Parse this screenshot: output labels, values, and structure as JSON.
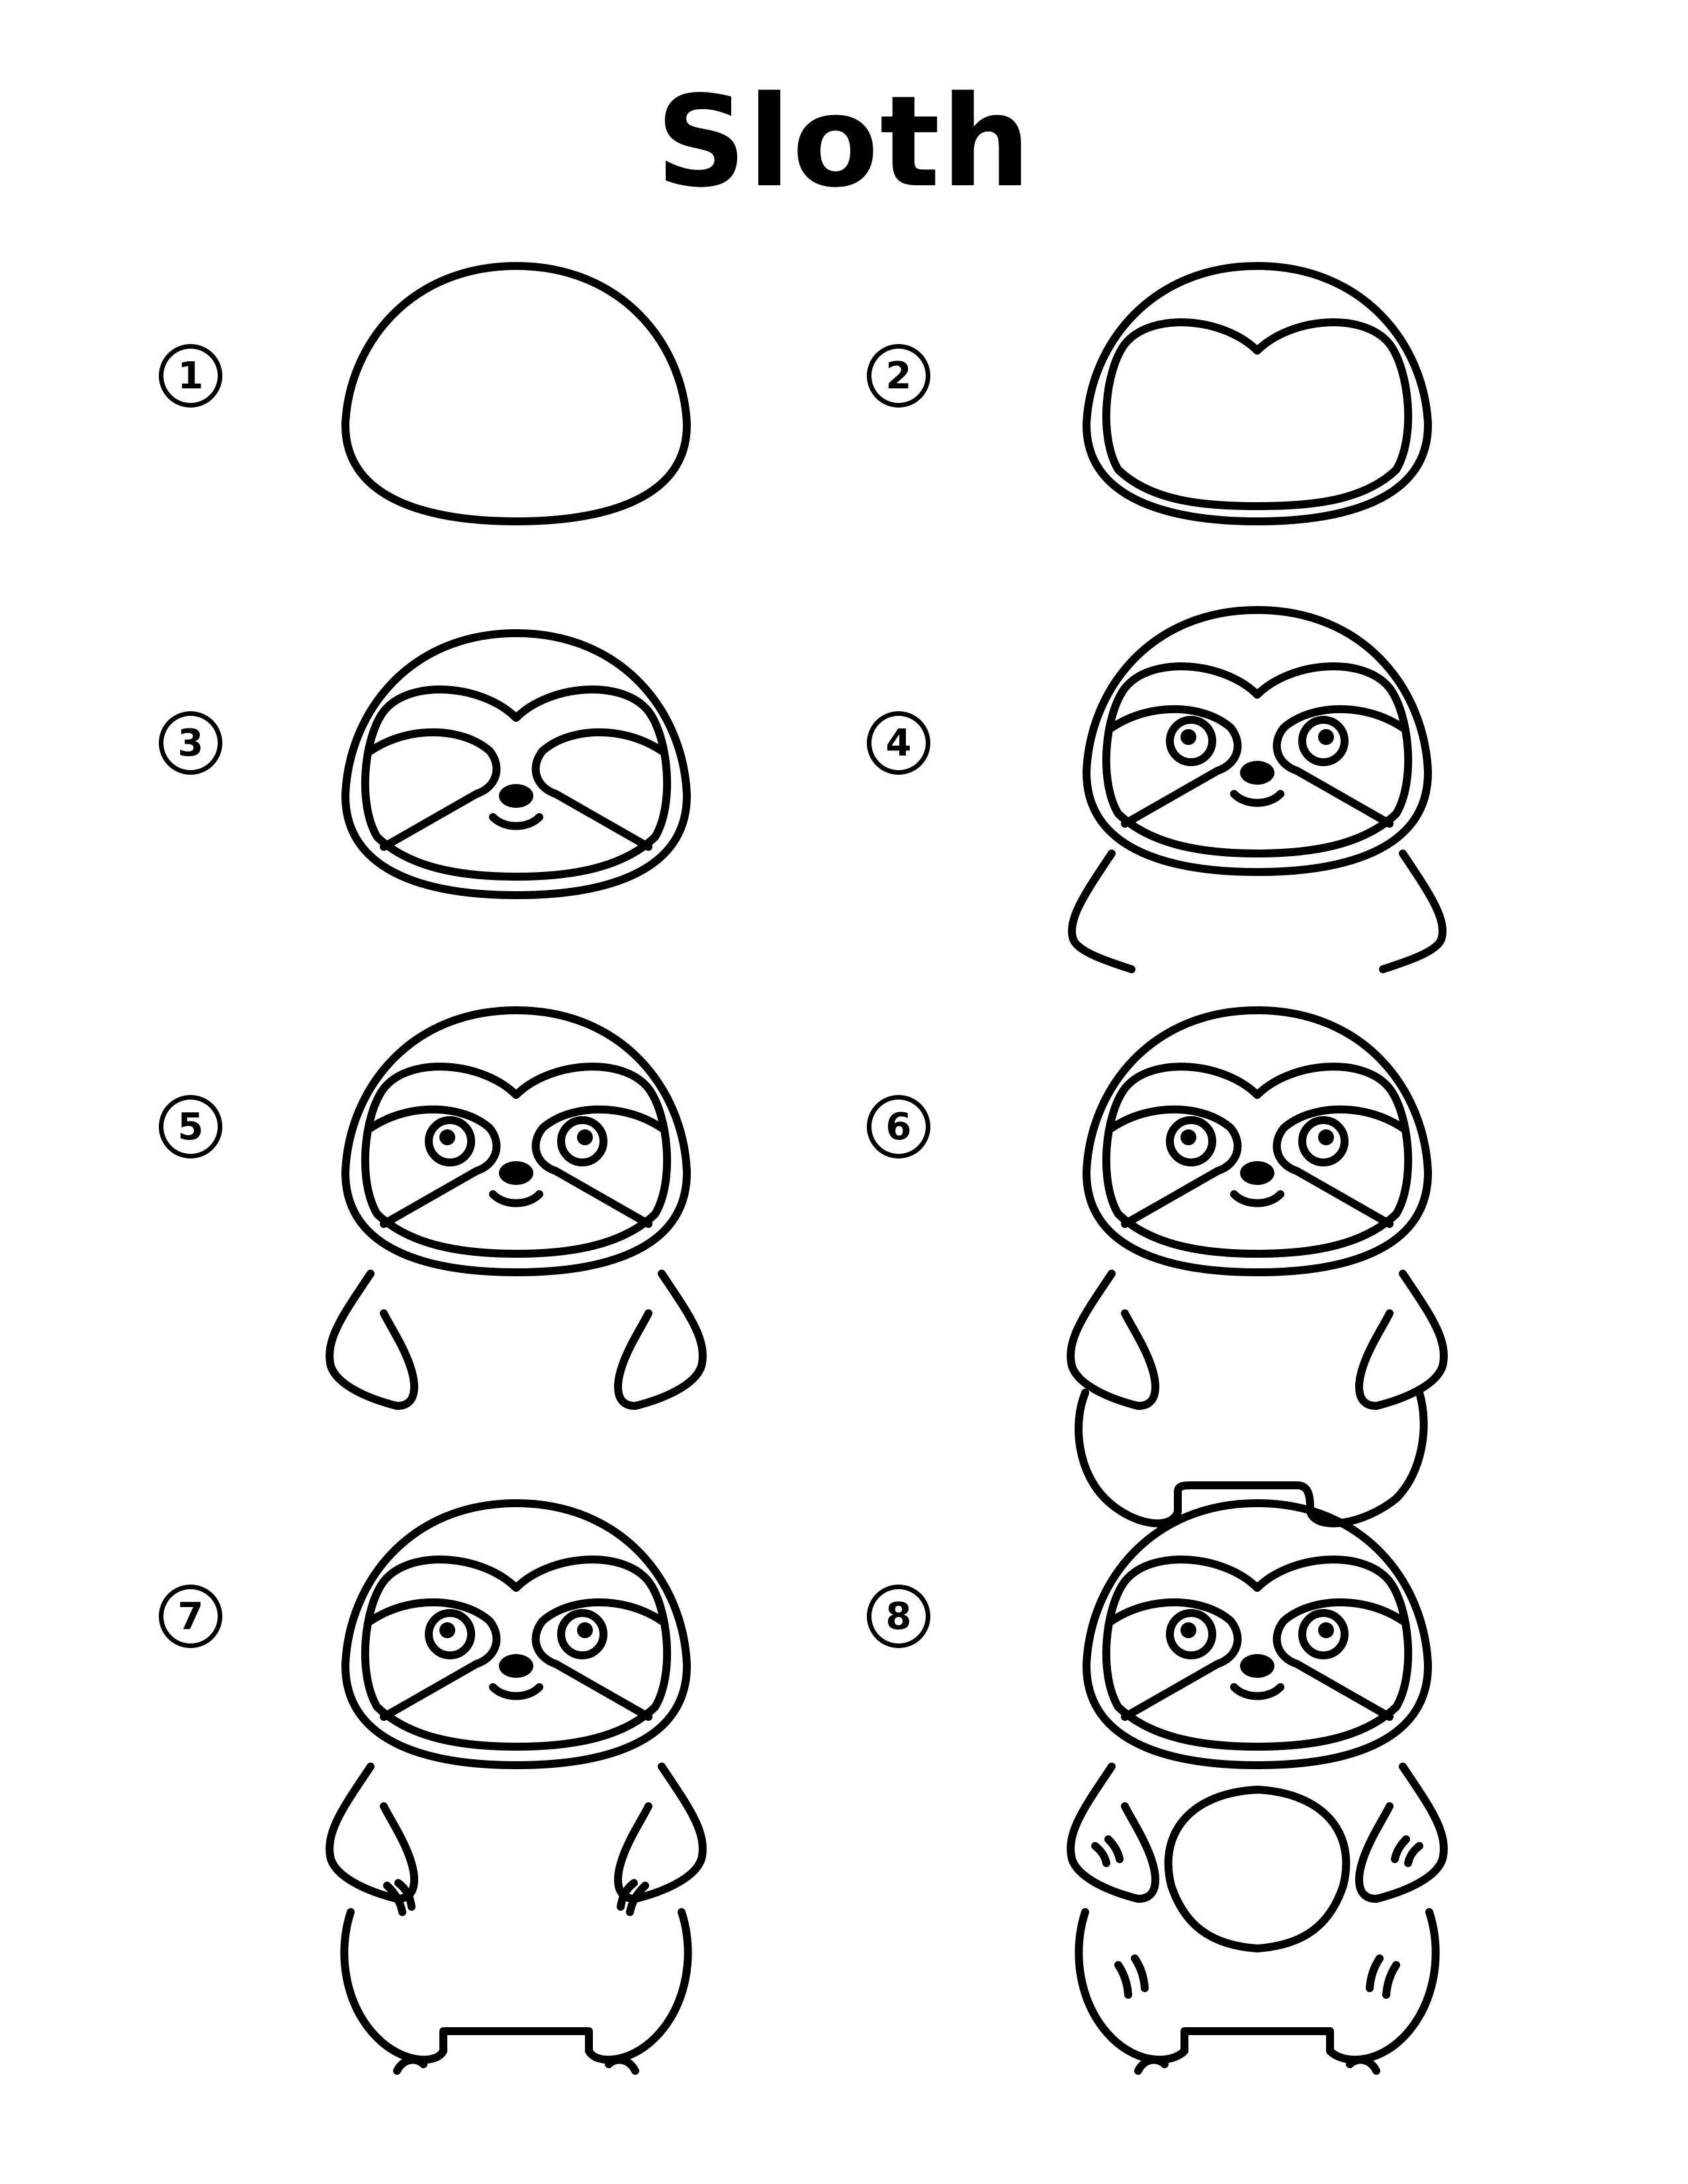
{
  "title": "Sloth",
  "steps": [
    {
      "number": "1"
    },
    {
      "number": "2"
    },
    {
      "number": "3"
    },
    {
      "number": "4"
    },
    {
      "number": "5"
    },
    {
      "number": "6"
    },
    {
      "number": "7"
    },
    {
      "number": "8"
    }
  ],
  "colors": {
    "ink": "#000000",
    "paper": "#ffffff"
  }
}
